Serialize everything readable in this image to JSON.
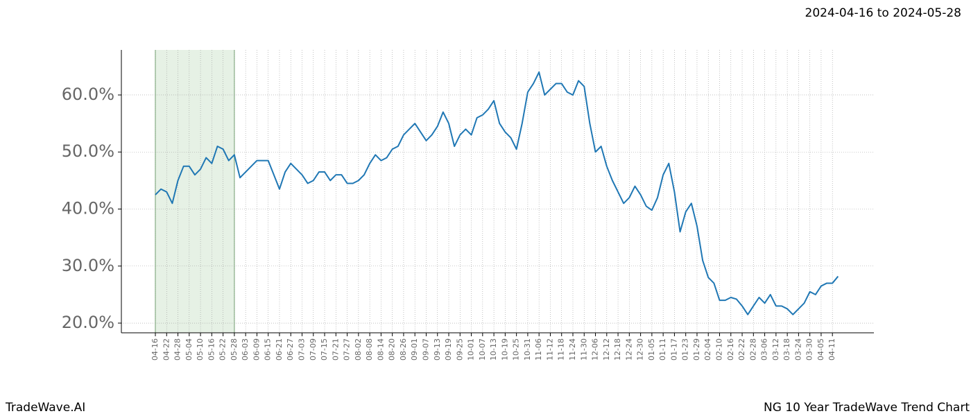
{
  "chart_data": {
    "type": "line",
    "date_range": "2024-04-16 to 2024-05-28",
    "brand": "TradeWave.AI",
    "title": "NG 10 Year TradeWave Trend Chart",
    "categories": [
      "04-16",
      null,
      "04-22",
      null,
      "04-28",
      null,
      "05-04",
      null,
      "05-10",
      null,
      "05-16",
      null,
      "05-22",
      null,
      "05-28",
      null,
      "06-03",
      null,
      "06-09",
      null,
      "06-15",
      null,
      "06-21",
      null,
      "06-27",
      null,
      "07-03",
      null,
      "07-09",
      null,
      "07-15",
      null,
      "07-21",
      null,
      "07-27",
      null,
      "08-02",
      null,
      "08-08",
      null,
      "08-14",
      null,
      "08-20",
      null,
      "08-26",
      null,
      "09-01",
      null,
      "09-07",
      null,
      "09-13",
      null,
      "09-19",
      null,
      "09-25",
      null,
      "10-01",
      null,
      "10-07",
      null,
      "10-13",
      null,
      "10-19",
      null,
      "10-25",
      null,
      "10-31",
      null,
      "11-06",
      null,
      "11-12",
      null,
      "11-18",
      null,
      "11-24",
      null,
      "11-30",
      null,
      "12-06",
      null,
      "12-12",
      null,
      "12-18",
      null,
      "12-24",
      null,
      "12-30",
      null,
      "01-05",
      null,
      "01-11",
      null,
      "01-17",
      null,
      "01-23",
      null,
      "01-29",
      null,
      "02-04",
      null,
      "02-10",
      null,
      "02-16",
      null,
      "02-22",
      null,
      "02-28",
      null,
      "03-06",
      null,
      "03-12",
      null,
      "03-18",
      null,
      "03-24",
      null,
      "03-30",
      null,
      "04-05",
      null,
      "04-11",
      null
    ],
    "series": [
      {
        "color": "#1f77b4",
        "values": [
          42.5,
          43.5,
          43,
          41,
          45,
          47.5,
          47.5,
          46,
          47,
          49,
          48,
          51,
          50.5,
          48.5,
          49.5,
          45.5,
          46.5,
          47.5,
          48.5,
          48.5,
          48.5,
          46,
          43.5,
          46.5,
          48,
          47,
          46,
          44.5,
          45,
          46.5,
          46.5,
          45,
          46,
          46,
          44.5,
          44.5,
          45,
          46,
          48,
          49.5,
          48.5,
          49,
          50.5,
          51,
          53,
          54,
          55,
          53.5,
          52,
          53,
          54.5,
          57,
          55,
          51,
          53,
          54,
          53,
          56,
          56.5,
          57.5,
          59,
          55,
          53.5,
          52.5,
          50.5,
          55,
          60.5,
          62,
          64,
          60,
          61,
          62,
          62,
          60.5,
          60,
          62.5,
          61.5,
          55,
          50,
          51,
          47.5,
          45,
          43,
          41,
          42,
          44,
          42.5,
          40.5,
          39.8,
          42,
          46,
          48,
          43,
          36,
          39.5,
          41,
          37,
          31,
          28,
          27,
          24,
          24,
          24.5,
          24.2,
          23,
          21.5,
          23,
          24.5,
          23.5,
          25,
          23,
          23,
          22.5,
          21.5,
          22.5,
          23.5,
          25.5,
          25,
          26.5,
          27,
          27,
          28.2
        ]
      }
    ],
    "ylim": [
      18.3,
      67.9
    ],
    "yticks": [
      {
        "value": 20,
        "label": "20.0%"
      },
      {
        "value": 30,
        "label": "30.0%"
      },
      {
        "value": 40,
        "label": "40.0%"
      },
      {
        "value": 50,
        "label": "50.0%"
      },
      {
        "value": 60,
        "label": "60.0%"
      }
    ],
    "grid": true,
    "shade": {
      "from": "04-16",
      "to": "05-28",
      "color": "#d5e8d4"
    }
  }
}
